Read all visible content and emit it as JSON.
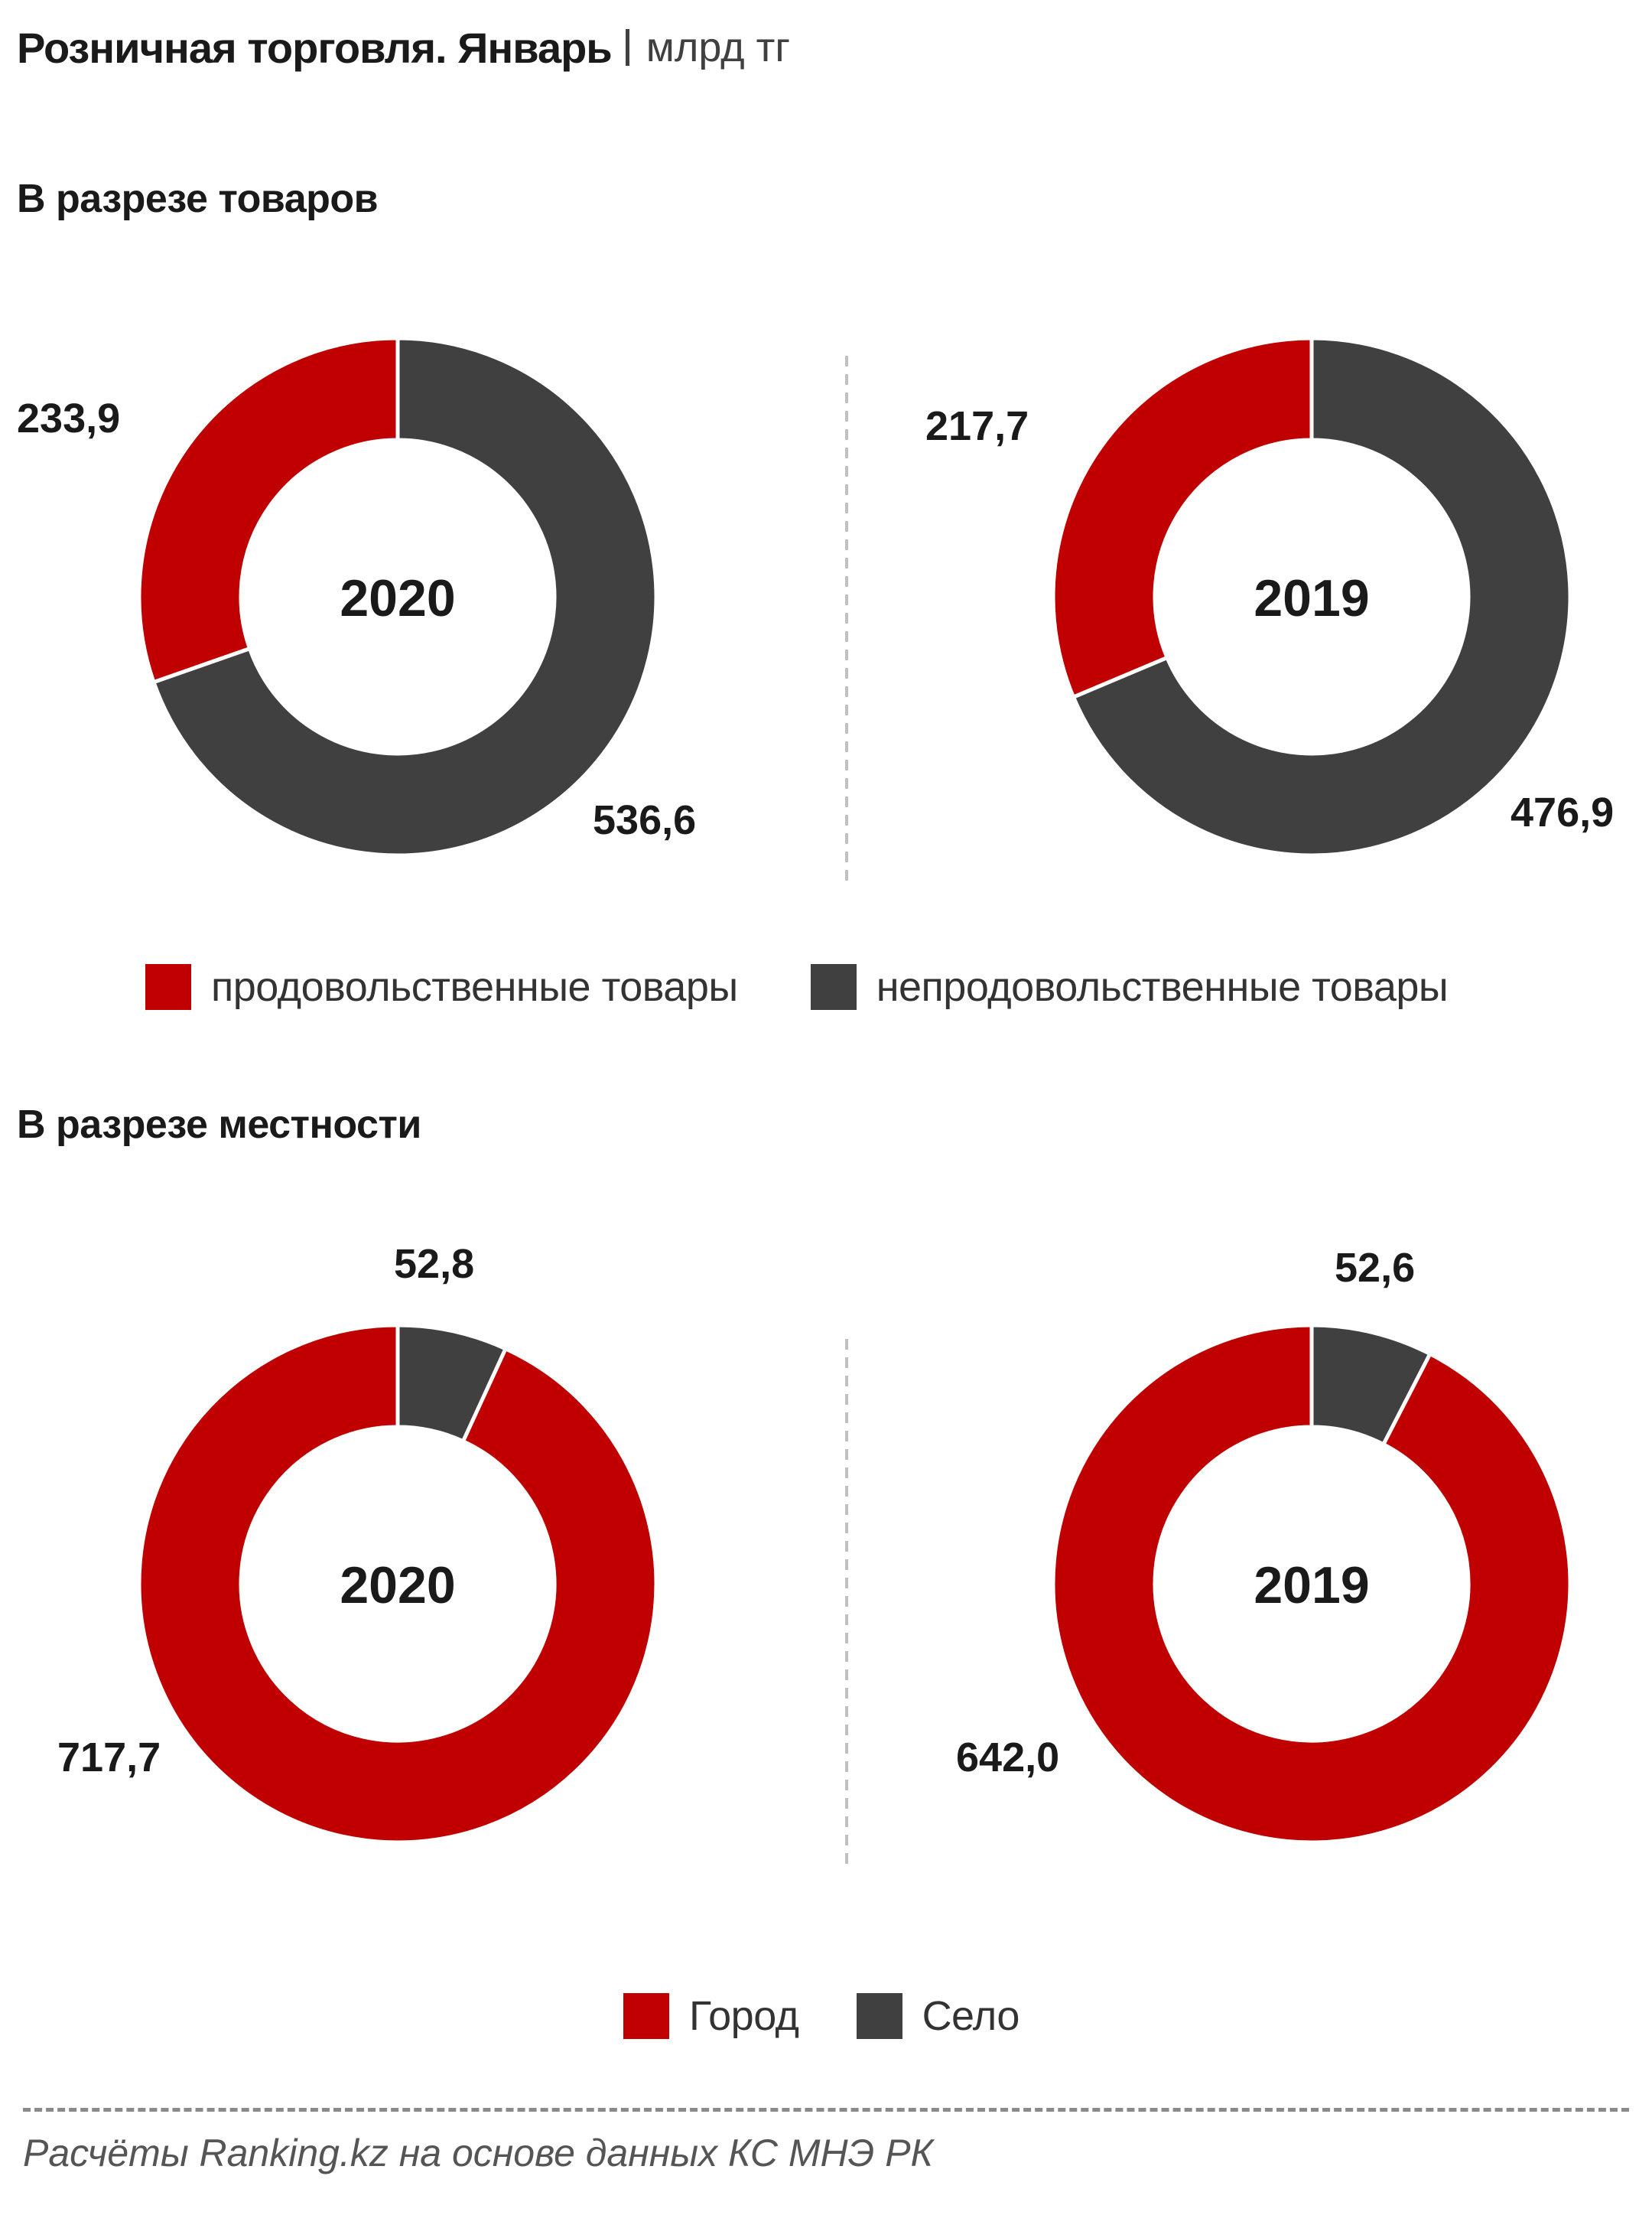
{
  "header": {
    "title": "Розничная торговля. Январь",
    "unit": "млрд тг"
  },
  "sections": [
    {
      "title": "В разрезе товаров"
    },
    {
      "title": "В разрезе местности"
    }
  ],
  "colors": {
    "red": "#c00000",
    "dark": "#404040",
    "divider": "#c0c0c0"
  },
  "chart_data": [
    {
      "type": "pie",
      "variant": "donut",
      "center_label": "2020",
      "categories": [
        "продовольственные товары",
        "непродовольственные товары"
      ],
      "values": [
        233.9,
        536.6
      ],
      "value_labels": [
        "233,9",
        "536,6"
      ],
      "colors": [
        "#c00000",
        "#404040"
      ]
    },
    {
      "type": "pie",
      "variant": "donut",
      "center_label": "2019",
      "categories": [
        "продовольственные товары",
        "непродовольственные товары"
      ],
      "values": [
        217.7,
        476.9
      ],
      "value_labels": [
        "217,7",
        "476,9"
      ],
      "colors": [
        "#c00000",
        "#404040"
      ]
    },
    {
      "type": "pie",
      "variant": "donut",
      "center_label": "2020",
      "categories": [
        "Город",
        "Село"
      ],
      "values": [
        717.7,
        52.8
      ],
      "value_labels": [
        "717,7",
        "52,8"
      ],
      "colors": [
        "#c00000",
        "#404040"
      ]
    },
    {
      "type": "pie",
      "variant": "donut",
      "center_label": "2019",
      "categories": [
        "Город",
        "Село"
      ],
      "values": [
        642.0,
        52.6
      ],
      "value_labels": [
        "642,0",
        "52,6"
      ],
      "colors": [
        "#c00000",
        "#404040"
      ]
    }
  ],
  "legends": [
    {
      "items": [
        {
          "label": "продовольственные товары",
          "color": "#c00000"
        },
        {
          "label": "непродовольственные товары",
          "color": "#404040"
        }
      ]
    },
    {
      "items": [
        {
          "label": "Город",
          "color": "#c00000"
        },
        {
          "label": "Село",
          "color": "#404040"
        }
      ]
    }
  ],
  "footer": {
    "source": "Расчёты Ranking.kz на основе данных  КС МНЭ РК"
  }
}
